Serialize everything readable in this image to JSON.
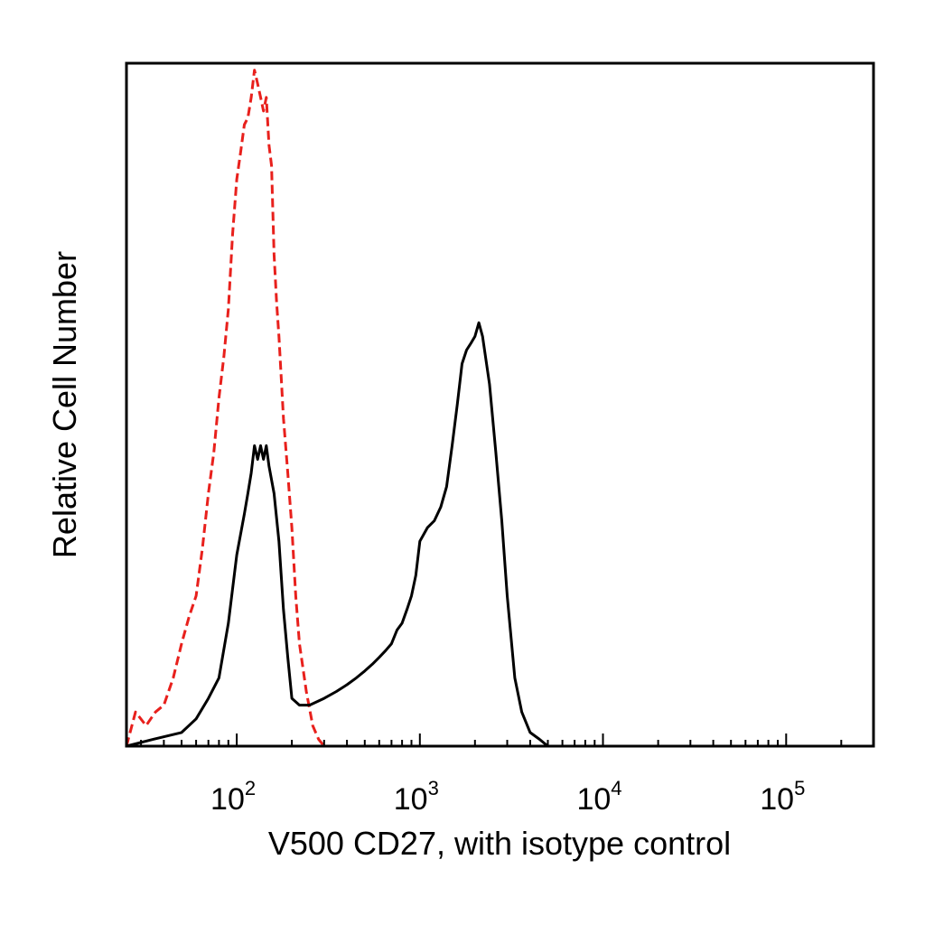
{
  "chart_data": {
    "type": "line",
    "title": "",
    "xlabel": "V500 CD27, with isotype control",
    "ylabel": "Relative Cell Number",
    "x_scale": "log",
    "xlim": [
      25,
      300000
    ],
    "ylim": [
      0,
      100
    ],
    "grid": false,
    "legend": "none",
    "x_ticks": [
      {
        "base": "10",
        "exp": "2",
        "value": 100
      },
      {
        "base": "10",
        "exp": "3",
        "value": 1000
      },
      {
        "base": "10",
        "exp": "4",
        "value": 10000
      },
      {
        "base": "10",
        "exp": "5",
        "value": 100000
      }
    ],
    "series": [
      {
        "style": "dashed",
        "color": "#e8201c",
        "x": [
          25,
          28,
          32,
          36,
          40,
          45,
          50,
          55,
          60,
          65,
          70,
          75,
          80,
          85,
          90,
          95,
          100,
          105,
          110,
          115,
          120,
          125,
          130,
          135,
          140,
          145,
          150,
          155,
          160,
          165,
          170,
          180,
          190,
          200,
          210,
          220,
          240,
          260,
          280,
          300
        ],
        "y": [
          0,
          5,
          3,
          5,
          6,
          10,
          15,
          19,
          22,
          29,
          37,
          43,
          51,
          57,
          64,
          75,
          83,
          87,
          91,
          92,
          95,
          99,
          97,
          95,
          93,
          95,
          88,
          85,
          72,
          65,
          60,
          48,
          40,
          32,
          22,
          15,
          8,
          3,
          1,
          0
        ]
      },
      {
        "style": "solid",
        "color": "#000000",
        "x": [
          25,
          35,
          50,
          60,
          70,
          80,
          90,
          100,
          110,
          115,
          120,
          125,
          130,
          135,
          140,
          145,
          150,
          160,
          170,
          180,
          190,
          200,
          220,
          250,
          300,
          350,
          400,
          450,
          500,
          550,
          600,
          650,
          700,
          750,
          800,
          850,
          900,
          950,
          1000,
          1100,
          1200,
          1300,
          1400,
          1500,
          1600,
          1700,
          1800,
          1900,
          2000,
          2100,
          2200,
          2400,
          2600,
          2800,
          3000,
          3300,
          3600,
          4000,
          4500,
          5000,
          6000
        ],
        "y": [
          0,
          1,
          2,
          4,
          7,
          10,
          18,
          28,
          34,
          37,
          40,
          44,
          42,
          44,
          42,
          44,
          41,
          37,
          30,
          20,
          13,
          7,
          6,
          6,
          7,
          8,
          9,
          10,
          11,
          12,
          13,
          14,
          15,
          17,
          18,
          20,
          22,
          25,
          30,
          32,
          33,
          35,
          38,
          44,
          50,
          56,
          58,
          59,
          60,
          62,
          60,
          53,
          43,
          33,
          22,
          10,
          5,
          2,
          1,
          0,
          0
        ]
      }
    ]
  }
}
